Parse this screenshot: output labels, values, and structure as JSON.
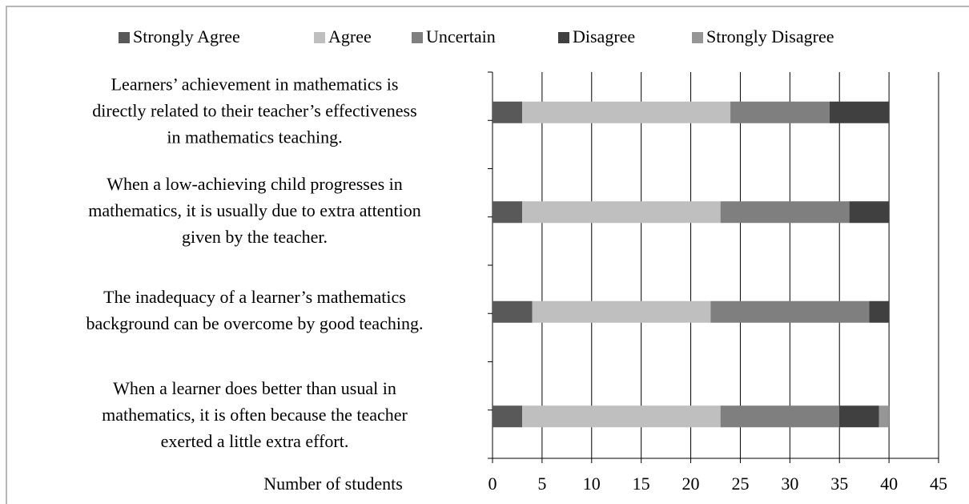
{
  "chart_data": {
    "type": "stacked_barh",
    "x_label": "Number of students",
    "categories": [
      [
        "Learners’ achievement in mathematics is",
        "directly related to their teacher’s effectiveness",
        "in mathematics teaching."
      ],
      [
        "When a low-achieving child progresses in",
        "mathematics, it is usually due to extra attention",
        "given by the teacher."
      ],
      [
        "The inadequacy of a learner’s mathematics",
        "background can be overcome by good teaching."
      ],
      [
        "When a learner does better than usual in",
        "mathematics, it is often because the teacher",
        "exerted a little extra effort."
      ]
    ],
    "series": [
      {
        "name": "Strongly Agree",
        "color": "#595959",
        "values": [
          3,
          3,
          4,
          3
        ]
      },
      {
        "name": "Agree",
        "color": "#bfbfbf",
        "values": [
          21,
          20,
          18,
          20
        ]
      },
      {
        "name": "Uncertain",
        "color": "#7f7f7f",
        "values": [
          10,
          13,
          16,
          12
        ]
      },
      {
        "name": "Disagree",
        "color": "#404040",
        "values": [
          6,
          4,
          2,
          4
        ]
      },
      {
        "name": "Strongly Disagree",
        "color": "#969696",
        "values": [
          0,
          0,
          0,
          1
        ]
      }
    ],
    "xlim": [
      0,
      45
    ],
    "xticks": [
      0,
      5,
      10,
      15,
      20,
      25,
      30,
      35,
      40,
      45
    ],
    "grid": true,
    "legend": "top"
  }
}
